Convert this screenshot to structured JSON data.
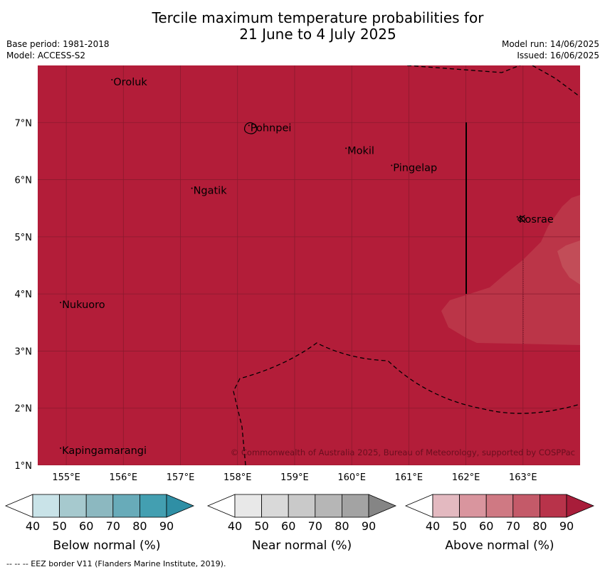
{
  "title": {
    "line1": "Tercile maximum temperature probabilities for",
    "line2": "21 June to 4 July 2025"
  },
  "meta": {
    "base_period": "Base period: 1981-2018",
    "model": "Model: ACCESS-S2",
    "model_run": "Model run: 14/06/2025",
    "issued": "Issued: 16/06/2025"
  },
  "map": {
    "lon_range": [
      154.5,
      164.0
    ],
    "lat_range": [
      1.0,
      8.0
    ],
    "lon_ticks": [
      {
        "value": 155,
        "label": "155°E"
      },
      {
        "value": 156,
        "label": "156°E"
      },
      {
        "value": 157,
        "label": "157°E"
      },
      {
        "value": 158,
        "label": "158°E"
      },
      {
        "value": 159,
        "label": "159°E"
      },
      {
        "value": 160,
        "label": "160°E"
      },
      {
        "value": 161,
        "label": "161°E"
      },
      {
        "value": 162,
        "label": "162°E"
      },
      {
        "value": 163,
        "label": "163°E"
      }
    ],
    "lat_ticks": [
      {
        "value": 1,
        "label": "1°N"
      },
      {
        "value": 2,
        "label": "2°N"
      },
      {
        "value": 3,
        "label": "3°N"
      },
      {
        "value": 4,
        "label": "4°N"
      },
      {
        "value": 5,
        "label": "5°N"
      },
      {
        "value": 6,
        "label": "6°N"
      },
      {
        "value": 7,
        "label": "7°N"
      }
    ],
    "background_color": "#b31d39",
    "lighter_region_color": "#bb3548",
    "lightest_region_color": "#c24d58",
    "places": [
      {
        "name": "Oroluk",
        "lon": 155.8,
        "lat": 7.7
      },
      {
        "name": "Pohnpei",
        "lon": 158.2,
        "lat": 6.9
      },
      {
        "name": "Mokil",
        "lon": 159.9,
        "lat": 6.5
      },
      {
        "name": "Pingelap",
        "lon": 160.7,
        "lat": 6.2
      },
      {
        "name": "Ngatik",
        "lon": 157.2,
        "lat": 5.8
      },
      {
        "name": "Kosrae",
        "lon": 162.9,
        "lat": 5.3
      },
      {
        "name": "Nukuoro",
        "lon": 154.9,
        "lat": 3.8
      },
      {
        "name": "Kapingamarangi",
        "lon": 154.9,
        "lat": 1.25
      }
    ],
    "copyright": "© Commonwealth of Australia 2025, Bureau of Meteorology, supported by COSPPac"
  },
  "colorbars": [
    {
      "label": "Below normal (%)",
      "colors": [
        "#ffffff",
        "#c9e3e8",
        "#a6c9ce",
        "#8cb8c0",
        "#68abb9",
        "#439fb1",
        "#2f8fa5"
      ],
      "ticks": [
        "40",
        "50",
        "60",
        "70",
        "80",
        "90"
      ]
    },
    {
      "label": "Near normal (%)",
      "colors": [
        "#ffffff",
        "#e8e8e8",
        "#d9d9d9",
        "#c9c9c9",
        "#b6b6b6",
        "#a3a3a3",
        "#858585"
      ],
      "ticks": [
        "40",
        "50",
        "60",
        "70",
        "80",
        "90"
      ]
    },
    {
      "label": "Above normal (%)",
      "colors": [
        "#ffffff",
        "#e3b9c0",
        "#d9959e",
        "#cf7983",
        "#c45a69",
        "#b8334a",
        "#a81d3a"
      ],
      "ticks": [
        "40",
        "50",
        "60",
        "70",
        "80",
        "90"
      ]
    }
  ],
  "footnote": "-- -- -- EEZ border V11 (Flanders Marine Institute, 2019)."
}
